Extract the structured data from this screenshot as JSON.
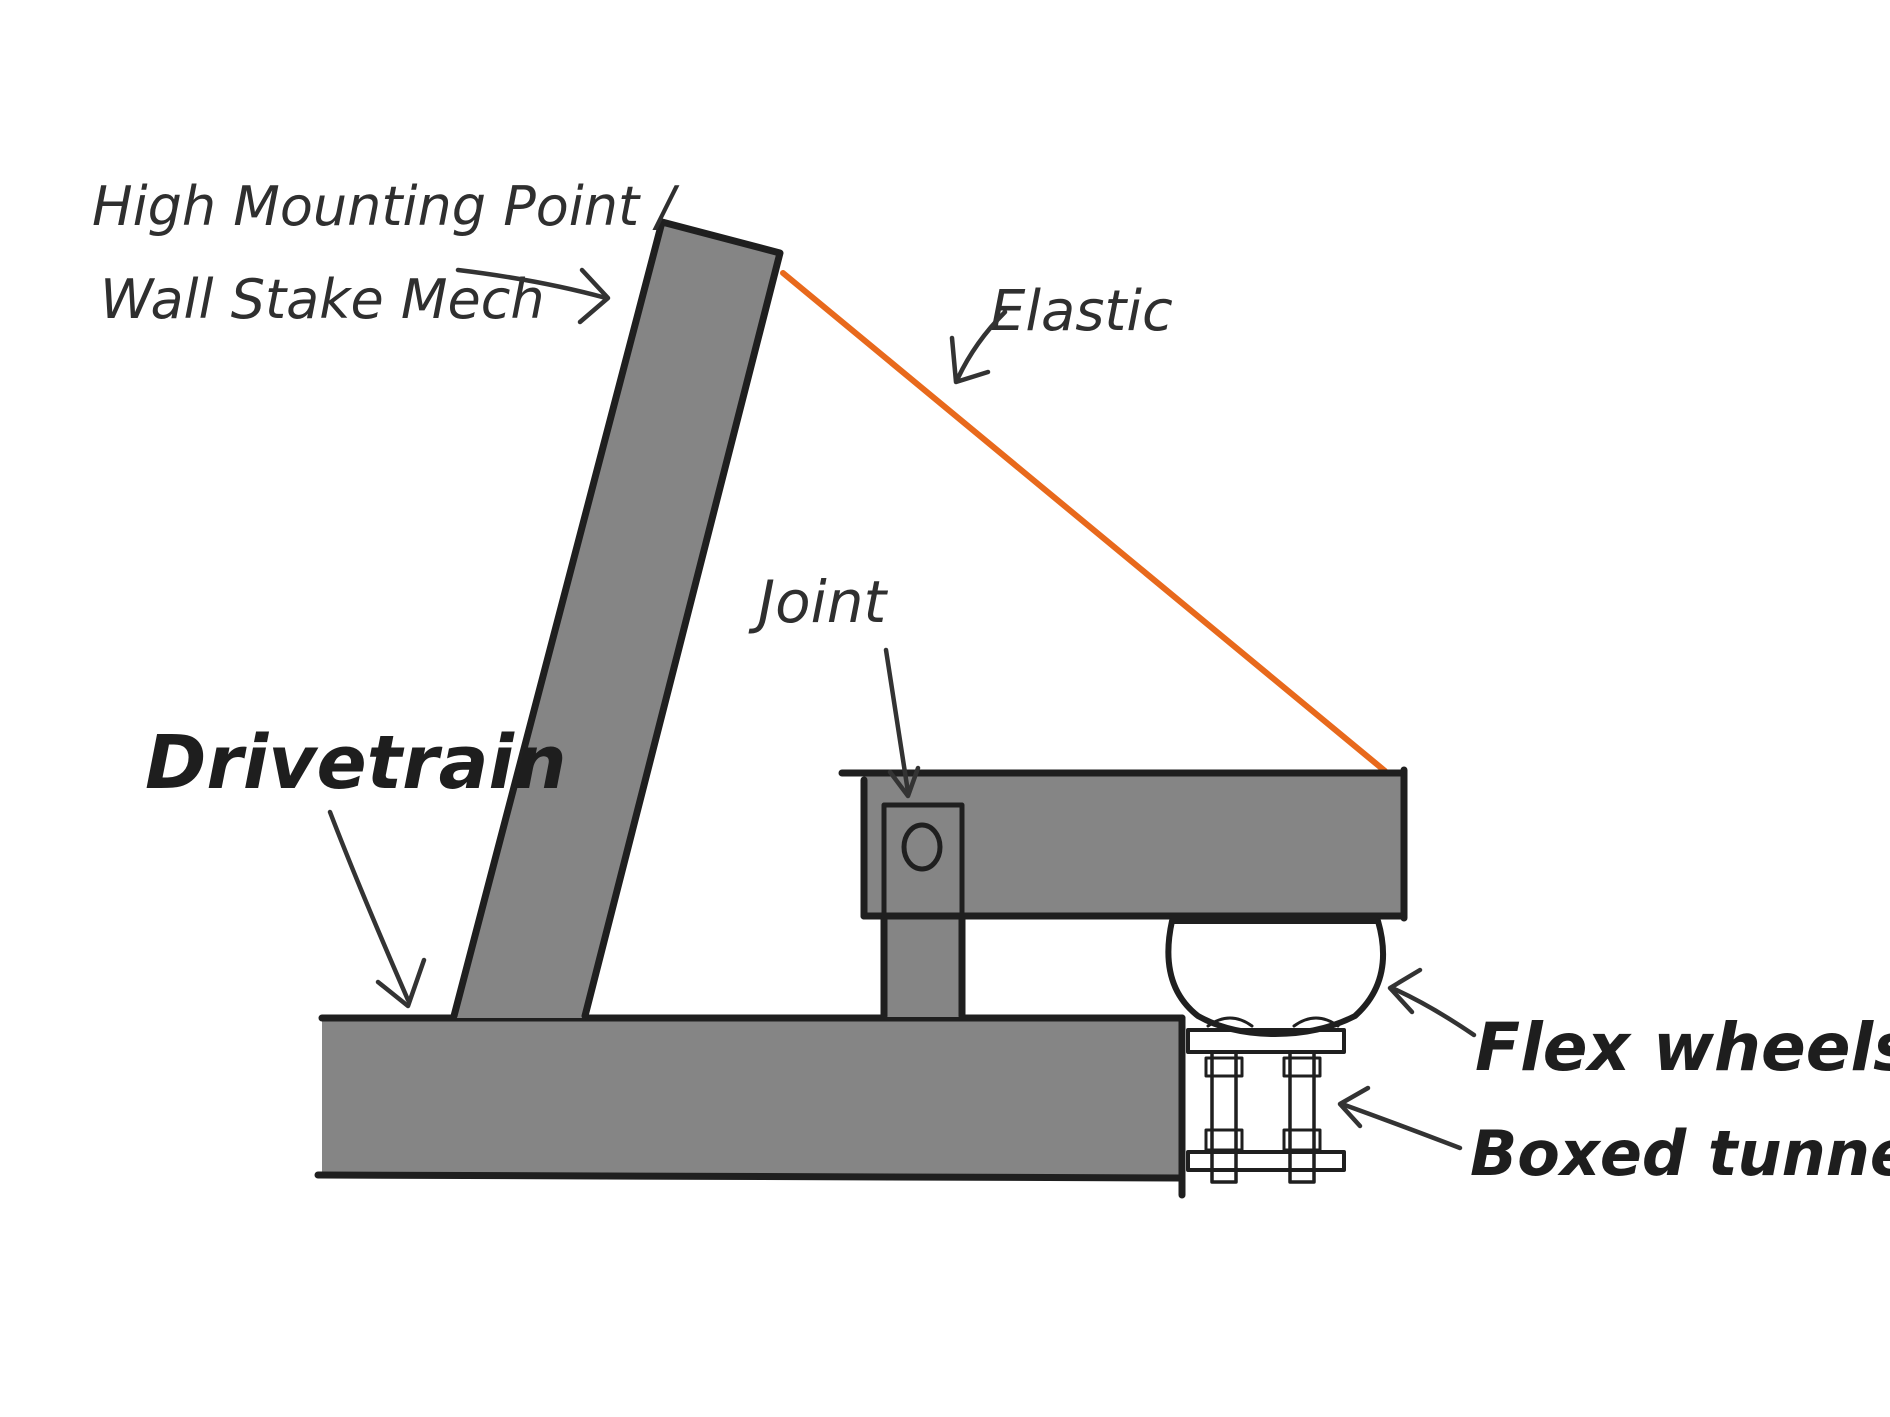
{
  "diagram": {
    "labels": {
      "mount_line1": "High Mounting Point /",
      "mount_line2": "Wall Stake Mech",
      "elastic": "Elastic",
      "joint": "Joint",
      "drivetrain": "Drivetrain",
      "flex_wheels": "Flex wheels",
      "boxed_tunnels": "Boxed tunnels"
    },
    "components": {
      "tall_arm": "tall-arm",
      "drivetrain_beam": "drivetrain-beam",
      "horizontal_arm": "horizontal-arm",
      "joint_post": "joint-post",
      "flex_wheel": "flex-wheel",
      "boxed_tunnel": "boxed-tunnel",
      "elastic_band": "elastic-band"
    },
    "colors": {
      "structure_fill": "#858585",
      "wheel_fill": "#b9b9b9",
      "outline": "#1f1f1f",
      "elastic": "#e8691c",
      "standoff": "#8f8f8f",
      "background": "#ffffff"
    }
  }
}
